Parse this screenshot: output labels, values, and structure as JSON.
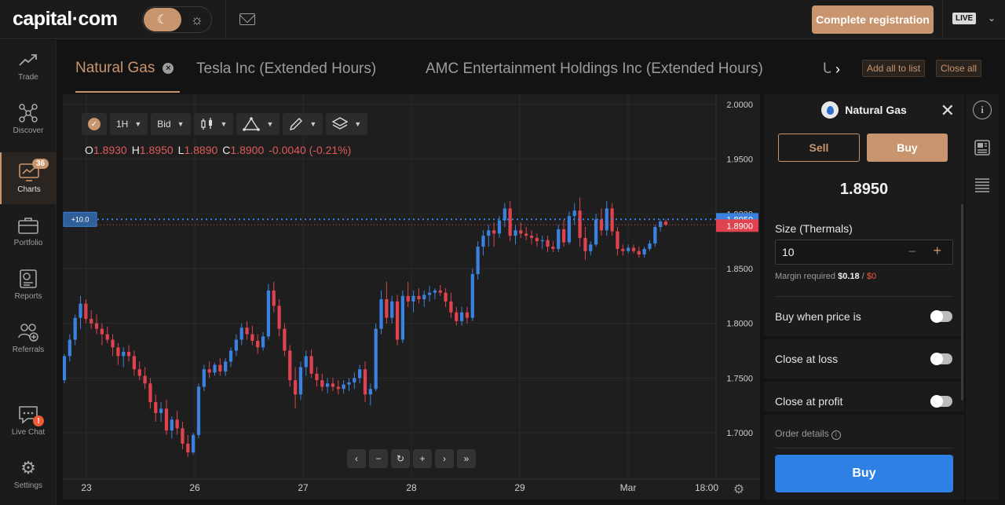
{
  "header": {
    "logo": "capital·com",
    "register_label": "Complete registration",
    "account_mode": "LIVE"
  },
  "sidebar": {
    "items": [
      {
        "label": "Trade",
        "icon": "trade-icon"
      },
      {
        "label": "Discover",
        "icon": "discover-icon"
      },
      {
        "label": "Charts",
        "icon": "charts-icon",
        "badge": "36",
        "active": true
      },
      {
        "label": "Portfolio",
        "icon": "portfolio-icon"
      },
      {
        "label": "Reports",
        "icon": "reports-icon"
      },
      {
        "label": "Referrals",
        "icon": "referrals-icon"
      },
      {
        "label": "Live Chat",
        "icon": "chat-icon"
      },
      {
        "label": "Settings",
        "icon": "gear-icon",
        "alert": "!"
      }
    ]
  },
  "tabs": {
    "items": [
      {
        "label": "Natural Gas",
        "active": true
      },
      {
        "label": "Tesla Inc (Extended Hours)"
      },
      {
        "label": "AMC Entertainment Holdings Inc (Extended Hours)"
      },
      {
        "label": "U"
      }
    ],
    "add_all_label": "Add all to list",
    "close_all_label": "Close all"
  },
  "toolbar": {
    "interval": "1H",
    "price_type": "Bid"
  },
  "ohlc": {
    "o_label": "O",
    "o": "1.8930",
    "h_label": "H",
    "h": "1.8950",
    "l_label": "L",
    "l": "1.8890",
    "c_label": "C",
    "c": "1.8900",
    "change": "-0.0040 (-0.21%)"
  },
  "chart_data": {
    "type": "candlestick",
    "y_ticks": [
      "2.0000",
      "1.9500",
      "1.9000",
      "1.8500",
      "1.8000",
      "1.7500",
      "1.7000"
    ],
    "x_ticks": [
      "23",
      "26",
      "27",
      "28",
      "29",
      "Mar",
      "18:00"
    ],
    "ylim": [
      1.68,
      2.0
    ],
    "price_line_buy": "1.8950",
    "price_line_sell": "1.8900",
    "position_label": "+10.0",
    "up_color": "#3b82e0",
    "down_color": "#e0434f",
    "candles": [
      [
        1.748,
        1.772,
        1.745,
        1.77
      ],
      [
        1.77,
        1.79,
        1.765,
        1.785
      ],
      [
        1.785,
        1.808,
        1.78,
        1.805
      ],
      [
        1.805,
        1.825,
        1.795,
        1.818
      ],
      [
        1.818,
        1.822,
        1.8,
        1.804
      ],
      [
        1.804,
        1.812,
        1.795,
        1.8
      ],
      [
        1.8,
        1.808,
        1.79,
        1.795
      ],
      [
        1.795,
        1.8,
        1.78,
        1.79
      ],
      [
        1.79,
        1.797,
        1.782,
        1.785
      ],
      [
        1.785,
        1.79,
        1.77,
        1.778
      ],
      [
        1.778,
        1.782,
        1.762,
        1.77
      ],
      [
        1.77,
        1.778,
        1.76,
        1.774
      ],
      [
        1.774,
        1.78,
        1.765,
        1.77
      ],
      [
        1.77,
        1.775,
        1.752,
        1.758
      ],
      [
        1.758,
        1.765,
        1.748,
        1.752
      ],
      [
        1.752,
        1.76,
        1.74,
        1.745
      ],
      [
        1.745,
        1.75,
        1.722,
        1.728
      ],
      [
        1.728,
        1.735,
        1.71,
        1.718
      ],
      [
        1.718,
        1.728,
        1.71,
        1.722
      ],
      [
        1.722,
        1.73,
        1.698,
        1.702
      ],
      [
        1.702,
        1.715,
        1.695,
        1.712
      ],
      [
        1.712,
        1.72,
        1.698,
        1.704
      ],
      [
        1.704,
        1.71,
        1.685,
        1.69
      ],
      [
        1.69,
        1.698,
        1.678,
        1.682
      ],
      [
        1.682,
        1.7,
        1.68,
        1.698
      ],
      [
        1.698,
        1.745,
        1.695,
        1.742
      ],
      [
        1.742,
        1.762,
        1.738,
        1.758
      ],
      [
        1.758,
        1.765,
        1.75,
        1.755
      ],
      [
        1.755,
        1.764,
        1.752,
        1.762
      ],
      [
        1.762,
        1.768,
        1.752,
        1.756
      ],
      [
        1.756,
        1.768,
        1.752,
        1.765
      ],
      [
        1.765,
        1.778,
        1.76,
        1.775
      ],
      [
        1.775,
        1.79,
        1.77,
        1.785
      ],
      [
        1.785,
        1.8,
        1.78,
        1.796
      ],
      [
        1.796,
        1.802,
        1.785,
        1.79
      ],
      [
        1.79,
        1.798,
        1.78,
        1.784
      ],
      [
        1.784,
        1.79,
        1.772,
        1.778
      ],
      [
        1.778,
        1.792,
        1.775,
        1.788
      ],
      [
        1.788,
        1.836,
        1.785,
        1.83
      ],
      [
        1.83,
        1.838,
        1.81,
        1.816
      ],
      [
        1.816,
        1.822,
        1.788,
        1.795
      ],
      [
        1.795,
        1.8,
        1.77,
        1.775
      ],
      [
        1.775,
        1.78,
        1.742,
        1.748
      ],
      [
        1.748,
        1.76,
        1.722,
        1.735
      ],
      [
        1.735,
        1.765,
        1.73,
        1.76
      ],
      [
        1.76,
        1.775,
        1.752,
        1.77
      ],
      [
        1.77,
        1.776,
        1.75,
        1.754
      ],
      [
        1.754,
        1.76,
        1.742,
        1.748
      ],
      [
        1.748,
        1.754,
        1.738,
        1.742
      ],
      [
        1.742,
        1.75,
        1.736,
        1.745
      ],
      [
        1.745,
        1.75,
        1.738,
        1.742
      ],
      [
        1.742,
        1.748,
        1.735,
        1.74
      ],
      [
        1.74,
        1.748,
        1.736,
        1.744
      ],
      [
        1.744,
        1.75,
        1.738,
        1.746
      ],
      [
        1.746,
        1.755,
        1.74,
        1.75
      ],
      [
        1.75,
        1.762,
        1.745,
        1.758
      ],
      [
        1.758,
        1.765,
        1.728,
        1.735
      ],
      [
        1.735,
        1.745,
        1.725,
        1.74
      ],
      [
        1.74,
        1.8,
        1.738,
        1.795
      ],
      [
        1.795,
        1.83,
        1.79,
        1.822
      ],
      [
        1.822,
        1.838,
        1.8,
        1.805
      ],
      [
        1.805,
        1.825,
        1.8,
        1.82
      ],
      [
        1.82,
        1.826,
        1.78,
        1.785
      ],
      [
        1.785,
        1.83,
        1.782,
        1.825
      ],
      [
        1.825,
        1.838,
        1.815,
        1.82
      ],
      [
        1.82,
        1.83,
        1.81,
        1.825
      ],
      [
        1.825,
        1.832,
        1.818,
        1.822
      ],
      [
        1.822,
        1.83,
        1.815,
        1.826
      ],
      [
        1.826,
        1.834,
        1.82,
        1.828
      ],
      [
        1.828,
        1.832,
        1.822,
        1.83
      ],
      [
        1.83,
        1.835,
        1.825,
        1.828
      ],
      [
        1.828,
        1.832,
        1.815,
        1.82
      ],
      [
        1.82,
        1.828,
        1.805,
        1.81
      ],
      [
        1.81,
        1.815,
        1.798,
        1.802
      ],
      [
        1.802,
        1.815,
        1.798,
        1.81
      ],
      [
        1.81,
        1.815,
        1.8,
        1.805
      ],
      [
        1.805,
        1.85,
        1.802,
        1.845
      ],
      [
        1.845,
        1.875,
        1.84,
        1.87
      ],
      [
        1.87,
        1.885,
        1.862,
        1.88
      ],
      [
        1.88,
        1.89,
        1.87,
        1.885
      ],
      [
        1.885,
        1.892,
        1.87,
        1.882
      ],
      [
        1.882,
        1.898,
        1.878,
        1.894
      ],
      [
        1.894,
        1.91,
        1.888,
        1.905
      ],
      [
        1.905,
        1.912,
        1.875,
        1.88
      ],
      [
        1.88,
        1.89,
        1.872,
        1.885
      ],
      [
        1.885,
        1.892,
        1.878,
        1.882
      ],
      [
        1.882,
        1.888,
        1.876,
        1.88
      ],
      [
        1.88,
        1.885,
        1.872,
        1.878
      ],
      [
        1.878,
        1.882,
        1.87,
        1.875
      ],
      [
        1.875,
        1.88,
        1.868,
        1.876
      ],
      [
        1.876,
        1.88,
        1.865,
        1.87
      ],
      [
        1.87,
        1.875,
        1.865,
        1.868
      ],
      [
        1.868,
        1.89,
        1.865,
        1.886
      ],
      [
        1.886,
        1.895,
        1.87,
        1.874
      ],
      [
        1.874,
        1.902,
        1.872,
        1.898
      ],
      [
        1.898,
        1.91,
        1.89,
        1.903
      ],
      [
        1.903,
        1.915,
        1.87,
        1.878
      ],
      [
        1.878,
        1.888,
        1.858,
        1.866
      ],
      [
        1.866,
        1.875,
        1.862,
        1.872
      ],
      [
        1.872,
        1.9,
        1.87,
        1.895
      ],
      [
        1.895,
        1.905,
        1.88,
        1.885
      ],
      [
        1.885,
        1.912,
        1.88,
        1.905
      ],
      [
        1.905,
        1.91,
        1.88,
        1.884
      ],
      [
        1.884,
        1.888,
        1.862,
        1.868
      ],
      [
        1.868,
        1.872,
        1.862,
        1.866
      ],
      [
        1.866,
        1.872,
        1.864,
        1.869
      ],
      [
        1.869,
        1.872,
        1.864,
        1.866
      ],
      [
        1.866,
        1.87,
        1.86,
        1.863
      ],
      [
        1.863,
        1.87,
        1.86,
        1.868
      ],
      [
        1.868,
        1.876,
        1.866,
        1.873
      ],
      [
        1.873,
        1.89,
        1.87,
        1.888
      ],
      [
        1.888,
        1.895,
        1.884,
        1.893
      ],
      [
        1.893,
        1.895,
        1.889,
        1.89
      ]
    ]
  },
  "chart_nav": [
    "‹",
    "−",
    "↻",
    "+",
    "›",
    "»"
  ],
  "panel": {
    "instrument": "Natural Gas",
    "sell_label": "Sell",
    "buy_label": "Buy",
    "price": "1.8950",
    "size_label": "Size (Thermals)",
    "size_value": "10",
    "margin_label": "Margin required",
    "margin_value": "$0.18",
    "margin_sep": "/",
    "margin_remaining": "$0",
    "buy_when_label": "Buy when price is",
    "close_loss_label": "Close at loss",
    "close_profit_label": "Close at profit",
    "order_details_label": "Order details",
    "buy_button_label": "Buy"
  }
}
